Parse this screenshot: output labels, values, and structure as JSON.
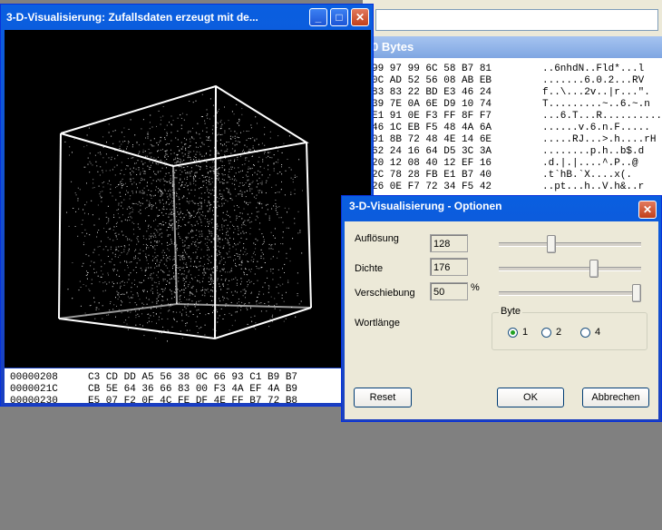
{
  "bg_window": {
    "subtitle": "0 Bytes",
    "hex_lines": [
      {
        "hex": "99 97 99 6C 58 B7 81",
        "ascii": "..6nhdN..Fld*...l"
      },
      {
        "hex": "0C AD 52 56 08 AB EB",
        "ascii": ".......6.0.2...RV"
      },
      {
        "hex": "83 83 22 BD E3 46 24",
        "ascii": "f..\\...2v..|r...\"."
      },
      {
        "hex": "39 7E 0A 6E D9 10 74",
        "ascii": "T.........~..6.~.n"
      },
      {
        "hex": "E1 91 0E F3 FF 8F F7",
        "ascii": "...6.T...R.........."
      },
      {
        "hex": "46 1C EB F5 48 4A 6A",
        "ascii": "......v.6.n.F....."
      },
      {
        "hex": "01 8B 72 48 4E 14 6E",
        "ascii": ".....RJ...>.h....rH"
      },
      {
        "hex": "62 24 16 64 D5 3C 3A",
        "ascii": "........p.h..b$.d"
      },
      {
        "hex": "20 12 08 40 12 EF 16",
        "ascii": ".d.|.|....^.P..@"
      },
      {
        "hex": "2C 78 28 FB E1 B7 40",
        "ascii": ".t`hB.`X....x(."
      },
      {
        "hex": "26 0E F7 72 34 F5 42",
        "ascii": "..pt...h..V.h&..r"
      }
    ]
  },
  "main_window": {
    "title": "3-D-Visualisierung: Zufallsdaten erzeugt mit de...",
    "buttons": {
      "minimize": "_",
      "maximize": "□",
      "close": "✕"
    },
    "hex_rows": [
      {
        "addr": "00000208",
        "bytes": "C3 CD DD A5 56 38 0C 66 93 C1 B9 B7"
      },
      {
        "addr": "0000021C",
        "bytes": "CB 5E 64 36 66 83 00 F3 4A EF 4A B9"
      },
      {
        "addr": "00000230",
        "bytes": "E5 07 F2 0F 4C FE DF 4E FF B7 72 B8"
      }
    ]
  },
  "dialog": {
    "title": "3-D-Visualisierung - Optionen",
    "close": "✕",
    "rows": [
      {
        "label": "Auflösung",
        "value": "128",
        "suffix": "",
        "level": 0.36
      },
      {
        "label": "Dichte",
        "value": "176",
        "suffix": "",
        "level": 0.68
      },
      {
        "label": "Verschiebung",
        "value": "50",
        "suffix": "%",
        "level": 1.0
      }
    ],
    "wortlaenge_label": "Wortlänge",
    "byte_group": {
      "legend": "Byte",
      "options": [
        "1",
        "2",
        "4"
      ],
      "selected": 0
    },
    "buttons": {
      "reset": "Reset",
      "ok": "OK",
      "cancel": "Abbrechen"
    }
  }
}
